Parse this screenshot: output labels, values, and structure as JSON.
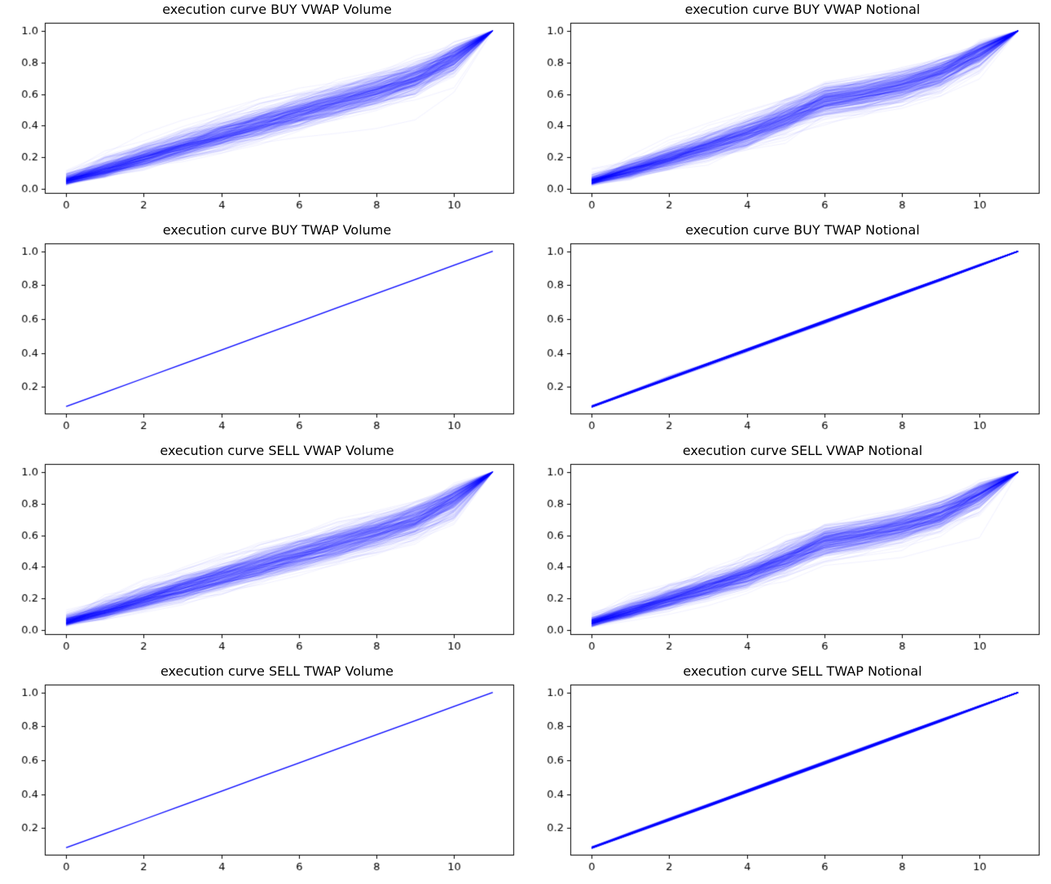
{
  "figure": {
    "background": "#ffffff",
    "line_color": "#0000ff",
    "axes_color": "#000000",
    "tick_label_color": "#000000",
    "title_color": "#000000"
  },
  "chart_data": [
    {
      "type": "line",
      "title": "execution curve BUY VWAP Volume",
      "style": "bundle",
      "x": [
        0,
        1,
        2,
        3,
        4,
        5,
        6,
        7,
        8,
        9,
        10,
        11
      ],
      "base_cumulative": [
        0.055,
        0.123,
        0.195,
        0.265,
        0.335,
        0.405,
        0.475,
        0.545,
        0.615,
        0.695,
        0.82,
        1.0
      ],
      "n_lines": 350,
      "noise_sigma": 0.32,
      "line_alpha": 0.06,
      "line_width": 1,
      "seed": 11,
      "xlim": [
        -0.55,
        11.55
      ],
      "ylim": [
        -0.03,
        1.05
      ],
      "x_ticks": [
        0,
        2,
        4,
        6,
        8,
        10
      ],
      "y_ticks": [
        0.0,
        0.2,
        0.4,
        0.6,
        0.8,
        1.0
      ],
      "x_tick_labels": [
        "0",
        "2",
        "4",
        "6",
        "8",
        "10"
      ],
      "y_tick_labels": [
        "0.0",
        "0.2",
        "0.4",
        "0.6",
        "0.8",
        "1.0"
      ],
      "xlabel": "",
      "ylabel": "",
      "legend": null,
      "grid": false
    },
    {
      "type": "line",
      "title": "execution curve BUY VWAP Notional",
      "style": "bundle",
      "x": [
        0,
        1,
        2,
        3,
        4,
        5,
        6,
        7,
        8,
        9,
        10,
        11
      ],
      "base_cumulative": [
        0.05,
        0.12,
        0.195,
        0.27,
        0.35,
        0.45,
        0.56,
        0.6,
        0.655,
        0.73,
        0.855,
        1.0
      ],
      "n_lines": 350,
      "noise_sigma": 0.32,
      "line_alpha": 0.06,
      "line_width": 1,
      "seed": 22,
      "xlim": [
        -0.55,
        11.55
      ],
      "ylim": [
        -0.03,
        1.05
      ],
      "x_ticks": [
        0,
        2,
        4,
        6,
        8,
        10
      ],
      "y_ticks": [
        0.0,
        0.2,
        0.4,
        0.6,
        0.8,
        1.0
      ],
      "x_tick_labels": [
        "0",
        "2",
        "4",
        "6",
        "8",
        "10"
      ],
      "y_tick_labels": [
        "0.0",
        "0.2",
        "0.4",
        "0.6",
        "0.8",
        "1.0"
      ],
      "xlabel": "",
      "ylabel": "",
      "legend": null,
      "grid": false
    },
    {
      "type": "line",
      "title": "execution curve BUY TWAP Volume",
      "style": "bundle",
      "x": [
        0,
        1,
        2,
        3,
        4,
        5,
        6,
        7,
        8,
        9,
        10,
        11
      ],
      "base_cumulative": [
        0.0833,
        0.1667,
        0.25,
        0.3333,
        0.4167,
        0.5,
        0.5833,
        0.6667,
        0.75,
        0.8333,
        0.9167,
        1.0
      ],
      "n_lines": 1,
      "noise_sigma": 0,
      "line_alpha": 1,
      "line_width": 1.3,
      "seed": 33,
      "xlim": [
        -0.55,
        11.55
      ],
      "ylim": [
        0.0375,
        1.046
      ],
      "x_ticks": [
        0,
        2,
        4,
        6,
        8,
        10
      ],
      "y_ticks": [
        0.2,
        0.4,
        0.6,
        0.8,
        1.0
      ],
      "x_tick_labels": [
        "0",
        "2",
        "4",
        "6",
        "8",
        "10"
      ],
      "y_tick_labels": [
        "0.2",
        "0.4",
        "0.6",
        "0.8",
        "1.0"
      ],
      "xlabel": "",
      "ylabel": "",
      "legend": null,
      "grid": false
    },
    {
      "type": "line",
      "title": "execution curve BUY TWAP Notional",
      "style": "bundle",
      "x": [
        0,
        1,
        2,
        3,
        4,
        5,
        6,
        7,
        8,
        9,
        10,
        11
      ],
      "base_cumulative": [
        0.0833,
        0.1667,
        0.25,
        0.3333,
        0.4167,
        0.5,
        0.5833,
        0.6667,
        0.75,
        0.8333,
        0.9167,
        1.0
      ],
      "n_lines": 60,
      "noise_sigma": 0.03,
      "line_alpha": 0.25,
      "line_width": 1.2,
      "seed": 44,
      "xlim": [
        -0.55,
        11.55
      ],
      "ylim": [
        0.0375,
        1.046
      ],
      "x_ticks": [
        0,
        2,
        4,
        6,
        8,
        10
      ],
      "y_ticks": [
        0.2,
        0.4,
        0.6,
        0.8,
        1.0
      ],
      "x_tick_labels": [
        "0",
        "2",
        "4",
        "6",
        "8",
        "10"
      ],
      "y_tick_labels": [
        "0.2",
        "0.4",
        "0.6",
        "0.8",
        "1.0"
      ],
      "xlabel": "",
      "ylabel": "",
      "legend": null,
      "grid": false
    },
    {
      "type": "line",
      "title": "execution curve SELL VWAP Volume",
      "style": "bundle",
      "x": [
        0,
        1,
        2,
        3,
        4,
        5,
        6,
        7,
        8,
        9,
        10,
        11
      ],
      "base_cumulative": [
        0.055,
        0.123,
        0.195,
        0.265,
        0.335,
        0.405,
        0.475,
        0.545,
        0.615,
        0.695,
        0.82,
        1.0
      ],
      "n_lines": 350,
      "noise_sigma": 0.32,
      "line_alpha": 0.06,
      "line_width": 1,
      "seed": 55,
      "xlim": [
        -0.55,
        11.55
      ],
      "ylim": [
        -0.03,
        1.05
      ],
      "x_ticks": [
        0,
        2,
        4,
        6,
        8,
        10
      ],
      "y_ticks": [
        0.0,
        0.2,
        0.4,
        0.6,
        0.8,
        1.0
      ],
      "x_tick_labels": [
        "0",
        "2",
        "4",
        "6",
        "8",
        "10"
      ],
      "y_tick_labels": [
        "0.0",
        "0.2",
        "0.4",
        "0.6",
        "0.8",
        "1.0"
      ],
      "xlabel": "",
      "ylabel": "",
      "legend": null,
      "grid": false
    },
    {
      "type": "line",
      "title": "execution curve SELL VWAP Notional",
      "style": "bundle",
      "x": [
        0,
        1,
        2,
        3,
        4,
        5,
        6,
        7,
        8,
        9,
        10,
        11
      ],
      "base_cumulative": [
        0.05,
        0.12,
        0.195,
        0.27,
        0.35,
        0.45,
        0.56,
        0.6,
        0.655,
        0.73,
        0.855,
        1.0
      ],
      "n_lines": 350,
      "noise_sigma": 0.32,
      "line_alpha": 0.06,
      "line_width": 1,
      "seed": 66,
      "xlim": [
        -0.55,
        11.55
      ],
      "ylim": [
        -0.03,
        1.05
      ],
      "x_ticks": [
        0,
        2,
        4,
        6,
        8,
        10
      ],
      "y_ticks": [
        0.0,
        0.2,
        0.4,
        0.6,
        0.8,
        1.0
      ],
      "x_tick_labels": [
        "0",
        "2",
        "4",
        "6",
        "8",
        "10"
      ],
      "y_tick_labels": [
        "0.0",
        "0.2",
        "0.4",
        "0.6",
        "0.8",
        "1.0"
      ],
      "xlabel": "",
      "ylabel": "",
      "legend": null,
      "grid": false
    },
    {
      "type": "line",
      "title": "execution curve SELL TWAP Volume",
      "style": "bundle",
      "x": [
        0,
        1,
        2,
        3,
        4,
        5,
        6,
        7,
        8,
        9,
        10,
        11
      ],
      "base_cumulative": [
        0.0833,
        0.1667,
        0.25,
        0.3333,
        0.4167,
        0.5,
        0.5833,
        0.6667,
        0.75,
        0.8333,
        0.9167,
        1.0
      ],
      "n_lines": 1,
      "noise_sigma": 0,
      "line_alpha": 1,
      "line_width": 1.3,
      "seed": 77,
      "xlim": [
        -0.55,
        11.55
      ],
      "ylim": [
        0.0375,
        1.046
      ],
      "x_ticks": [
        0,
        2,
        4,
        6,
        8,
        10
      ],
      "y_ticks": [
        0.2,
        0.4,
        0.6,
        0.8,
        1.0
      ],
      "x_tick_labels": [
        "0",
        "2",
        "4",
        "6",
        "8",
        "10"
      ],
      "y_tick_labels": [
        "0.2",
        "0.4",
        "0.6",
        "0.8",
        "1.0"
      ],
      "xlabel": "",
      "ylabel": "",
      "legend": null,
      "grid": false
    },
    {
      "type": "line",
      "title": "execution curve SELL TWAP Notional",
      "style": "bundle",
      "x": [
        0,
        1,
        2,
        3,
        4,
        5,
        6,
        7,
        8,
        9,
        10,
        11
      ],
      "base_cumulative": [
        0.0833,
        0.1667,
        0.25,
        0.3333,
        0.4167,
        0.5,
        0.5833,
        0.6667,
        0.75,
        0.8333,
        0.9167,
        1.0
      ],
      "n_lines": 60,
      "noise_sigma": 0.03,
      "line_alpha": 0.25,
      "line_width": 1.2,
      "seed": 88,
      "xlim": [
        -0.55,
        11.55
      ],
      "ylim": [
        0.0375,
        1.046
      ],
      "x_ticks": [
        0,
        2,
        4,
        6,
        8,
        10
      ],
      "y_ticks": [
        0.2,
        0.4,
        0.6,
        0.8,
        1.0
      ],
      "x_tick_labels": [
        "0",
        "2",
        "4",
        "6",
        "8",
        "10"
      ],
      "y_tick_labels": [
        "0.2",
        "0.4",
        "0.6",
        "0.8",
        "1.0"
      ],
      "xlabel": "",
      "ylabel": "",
      "legend": null,
      "grid": false
    }
  ]
}
